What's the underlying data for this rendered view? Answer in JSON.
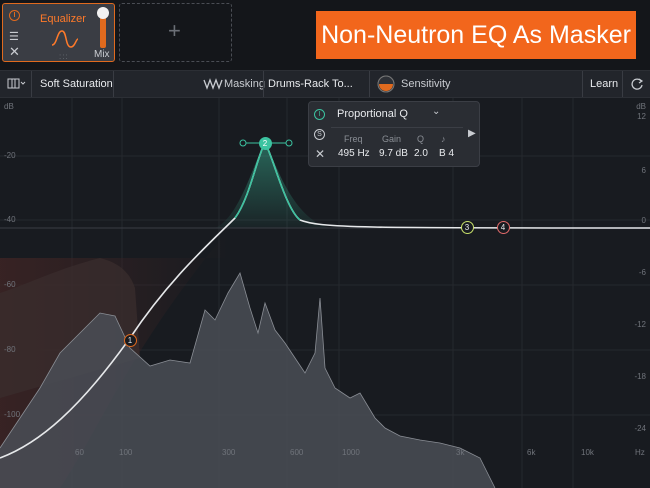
{
  "banner": "Non-Neutron EQ As Masker",
  "module": {
    "name": "Equalizer",
    "mix_label": "Mix",
    "add_symbol": "+"
  },
  "toolbar": {
    "soft_saturation": "Soft Saturation",
    "masking": "Masking",
    "masking_source": "Drums-Rack To...",
    "sensitivity": "Sensitivity",
    "learn": "Learn"
  },
  "band_panel": {
    "shape": "Proportional Q",
    "labels": {
      "freq": "Freq",
      "gain": "Gain",
      "q": "Q",
      "note": "♪"
    },
    "values": {
      "freq": "495 Hz",
      "gain": "9.7 dB",
      "q": "2.0",
      "note": "B 4"
    },
    "solo_symbol": "S"
  },
  "axes": {
    "left_unit": "dB",
    "left_ticks": [
      "-20",
      "-40",
      "-60",
      "-80",
      "-100"
    ],
    "right_unit": "dB",
    "right_ticks": [
      "12",
      "6",
      "0",
      "-6",
      "-12",
      "-18",
      "-24"
    ],
    "freq_ticks": [
      "60",
      "100",
      "300",
      "600",
      "1000",
      "3k",
      "6k",
      "10k"
    ],
    "freq_unit": "Hz"
  },
  "bands": [
    {
      "id": "1",
      "color": "#e06a1e"
    },
    {
      "id": "2",
      "color": "#3cc3a0"
    },
    {
      "id": "3",
      "color": "#c7e06a"
    },
    {
      "id": "4",
      "color": "#e06a6a"
    }
  ],
  "colors": {
    "accent": "#f2661c",
    "eq_curve": "#e6e8ea",
    "band2": "#3cc3a0"
  }
}
